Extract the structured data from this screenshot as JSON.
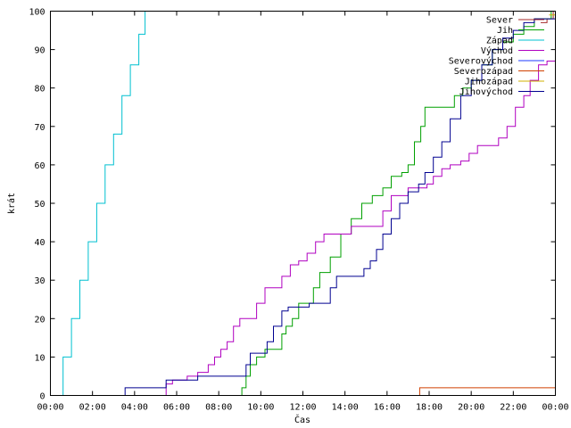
{
  "chart_data": {
    "type": "line",
    "xlabel": "Čas",
    "ylabel": "krát",
    "xlim": [
      0,
      24
    ],
    "ylim": [
      0,
      100
    ],
    "x_ticks": [
      {
        "value": 0,
        "label": "00:00"
      },
      {
        "value": 2,
        "label": "02:00"
      },
      {
        "value": 4,
        "label": "04:00"
      },
      {
        "value": 6,
        "label": "06:00"
      },
      {
        "value": 8,
        "label": "08:00"
      },
      {
        "value": 10,
        "label": "10:00"
      },
      {
        "value": 12,
        "label": "12:00"
      },
      {
        "value": 14,
        "label": "14:00"
      },
      {
        "value": 16,
        "label": "16:00"
      },
      {
        "value": 18,
        "label": "18:00"
      },
      {
        "value": 20,
        "label": "20:00"
      },
      {
        "value": 22,
        "label": "22:00"
      },
      {
        "value": 24,
        "label": "00:00"
      }
    ],
    "y_ticks": [
      0,
      10,
      20,
      30,
      40,
      50,
      60,
      70,
      80,
      90,
      100
    ],
    "grid": false,
    "legend_position": "top-right",
    "series": [
      {
        "name": "Sever",
        "color": "#a52a2a",
        "points": [
          [
            23.3,
            97
          ],
          [
            23.6,
            98
          ],
          [
            23.9,
            100
          ]
        ]
      },
      {
        "name": "Jih",
        "color": "#00a000",
        "points": [
          [
            0,
            0
          ],
          [
            9.0,
            0
          ],
          [
            9.1,
            2
          ],
          [
            9.3,
            5
          ],
          [
            9.5,
            8
          ],
          [
            9.8,
            10
          ],
          [
            10.2,
            12
          ],
          [
            10.8,
            12
          ],
          [
            11.0,
            16
          ],
          [
            11.2,
            18
          ],
          [
            11.5,
            20
          ],
          [
            11.8,
            24
          ],
          [
            12.3,
            24
          ],
          [
            12.5,
            28
          ],
          [
            12.8,
            32
          ],
          [
            13.3,
            36
          ],
          [
            13.8,
            42
          ],
          [
            14.3,
            46
          ],
          [
            14.8,
            50
          ],
          [
            15.3,
            52
          ],
          [
            15.8,
            54
          ],
          [
            16.2,
            57
          ],
          [
            16.7,
            58
          ],
          [
            17.0,
            60
          ],
          [
            17.3,
            66
          ],
          [
            17.6,
            70
          ],
          [
            17.8,
            75
          ],
          [
            18.8,
            75
          ],
          [
            19.2,
            78
          ],
          [
            19.6,
            80
          ],
          [
            20.0,
            82
          ],
          [
            20.5,
            86
          ],
          [
            21.0,
            90
          ],
          [
            21.5,
            92
          ],
          [
            22.0,
            94
          ],
          [
            22.5,
            96
          ],
          [
            23.0,
            98
          ],
          [
            23.6,
            98
          ],
          [
            23.8,
            100
          ]
        ]
      },
      {
        "name": "Západ",
        "color": "#00c0d0",
        "points": [
          [
            0.2,
            0
          ],
          [
            0.6,
            10
          ],
          [
            1.0,
            20
          ],
          [
            1.4,
            30
          ],
          [
            1.8,
            40
          ],
          [
            2.2,
            50
          ],
          [
            2.6,
            60
          ],
          [
            3.0,
            68
          ],
          [
            3.4,
            78
          ],
          [
            3.8,
            86
          ],
          [
            4.2,
            94
          ],
          [
            4.5,
            100
          ]
        ]
      },
      {
        "name": "Východ",
        "color": "#b000c0",
        "points": [
          [
            0,
            0
          ],
          [
            5.3,
            0
          ],
          [
            5.5,
            3
          ],
          [
            5.8,
            4
          ],
          [
            6.2,
            4
          ],
          [
            6.5,
            5
          ],
          [
            7.0,
            6
          ],
          [
            7.5,
            8
          ],
          [
            7.8,
            10
          ],
          [
            8.1,
            12
          ],
          [
            8.4,
            14
          ],
          [
            8.7,
            18
          ],
          [
            9.0,
            20
          ],
          [
            9.5,
            20
          ],
          [
            9.8,
            24
          ],
          [
            10.2,
            28
          ],
          [
            10.8,
            28
          ],
          [
            11.0,
            31
          ],
          [
            11.4,
            34
          ],
          [
            11.8,
            35
          ],
          [
            12.2,
            37
          ],
          [
            12.6,
            40
          ],
          [
            13.0,
            42
          ],
          [
            14.0,
            42
          ],
          [
            14.3,
            44
          ],
          [
            15.5,
            44
          ],
          [
            15.8,
            48
          ],
          [
            16.2,
            52
          ],
          [
            16.8,
            52
          ],
          [
            17.0,
            54
          ],
          [
            17.6,
            54
          ],
          [
            17.9,
            55
          ],
          [
            18.2,
            57
          ],
          [
            18.6,
            59
          ],
          [
            19.0,
            60
          ],
          [
            19.5,
            61
          ],
          [
            19.9,
            63
          ],
          [
            20.3,
            65
          ],
          [
            21.0,
            65
          ],
          [
            21.3,
            67
          ],
          [
            21.7,
            70
          ],
          [
            22.1,
            75
          ],
          [
            22.5,
            78
          ],
          [
            22.8,
            82
          ],
          [
            23.2,
            86
          ],
          [
            23.6,
            87
          ],
          [
            24,
            87
          ]
        ]
      },
      {
        "name": "Severovýchod",
        "color": "#1e3aff",
        "points": []
      },
      {
        "name": "Severozápad",
        "color": "#d04000",
        "points": [
          [
            0,
            0
          ],
          [
            17.5,
            0
          ],
          [
            17.55,
            2
          ],
          [
            24,
            2
          ]
        ]
      },
      {
        "name": "Jihozápad",
        "color": "#d0b000",
        "points": [
          [
            23.7,
            99
          ],
          [
            24,
            100
          ]
        ]
      },
      {
        "name": "Jihovýchod",
        "color": "#000090",
        "points": [
          [
            0,
            0
          ],
          [
            3.5,
            0
          ],
          [
            3.55,
            2
          ],
          [
            5.0,
            2
          ],
          [
            5.5,
            4
          ],
          [
            6.5,
            4
          ],
          [
            7.0,
            5
          ],
          [
            9.0,
            5
          ],
          [
            9.3,
            8
          ],
          [
            9.5,
            11
          ],
          [
            10.0,
            11
          ],
          [
            10.3,
            14
          ],
          [
            10.6,
            18
          ],
          [
            11.0,
            22
          ],
          [
            11.3,
            23
          ],
          [
            12.0,
            23
          ],
          [
            12.3,
            24
          ],
          [
            13.0,
            24
          ],
          [
            13.3,
            28
          ],
          [
            13.6,
            31
          ],
          [
            14.6,
            31
          ],
          [
            14.9,
            33
          ],
          [
            15.2,
            35
          ],
          [
            15.5,
            38
          ],
          [
            15.8,
            42
          ],
          [
            16.2,
            46
          ],
          [
            16.6,
            50
          ],
          [
            17.0,
            53
          ],
          [
            17.5,
            55
          ],
          [
            17.8,
            58
          ],
          [
            18.2,
            62
          ],
          [
            18.6,
            66
          ],
          [
            19.0,
            72
          ],
          [
            19.5,
            78
          ],
          [
            20.0,
            82
          ],
          [
            20.5,
            86
          ],
          [
            21.0,
            90
          ],
          [
            21.5,
            93
          ],
          [
            22.0,
            95
          ],
          [
            22.5,
            97
          ],
          [
            23.0,
            98
          ],
          [
            24,
            98
          ]
        ]
      }
    ]
  }
}
